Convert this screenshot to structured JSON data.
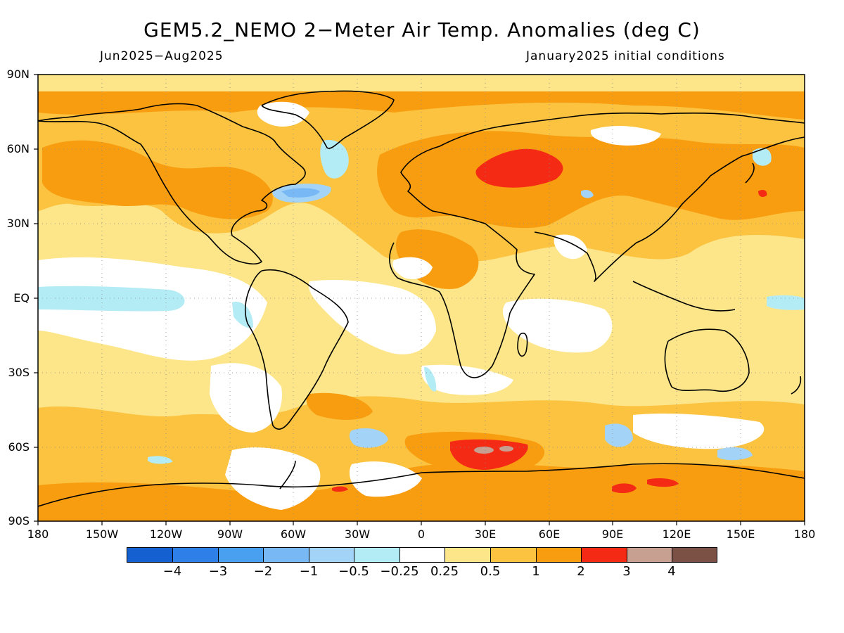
{
  "header": {
    "title": "GEM5.2_NEMO 2−Meter Air Temp. Anomalies (deg C)",
    "period": "Jun2025−Aug2025",
    "init": "January2025 initial conditions"
  },
  "axes": {
    "lat_labels": [
      "90N",
      "60N",
      "30N",
      "EQ",
      "30S",
      "60S",
      "90S"
    ],
    "lon_labels": [
      "180",
      "150W",
      "120W",
      "90W",
      "60W",
      "30W",
      "0",
      "30E",
      "60E",
      "90E",
      "120E",
      "150E",
      "180"
    ],
    "lon_range": [
      -180,
      180
    ],
    "lat_range": [
      -90,
      90
    ],
    "grid": "dotted every 30 degrees"
  },
  "colorbar": {
    "labels": [
      "−4",
      "−3",
      "−2",
      "−1",
      "−0.5",
      "−0.25",
      "0.25",
      "0.5",
      "1",
      "2",
      "3",
      "4"
    ],
    "colors": [
      "#1560d0",
      "#2e7fe8",
      "#4aa0f0",
      "#78b8f5",
      "#a3d3f7",
      "#b4ecf6",
      "#ffffff",
      "#fde68a",
      "#fbc340",
      "#f89c10",
      "#f42a14",
      "#c8a092",
      "#7b5045"
    ]
  },
  "regions": [
    {
      "name": "Eastern Europe / Western Russia",
      "anomaly": "2 to 3"
    },
    {
      "name": "Southern Ocean near 60S 30E",
      "anomaly": "2 to 4"
    },
    {
      "name": "Antarctica interior",
      "anomaly": "1 to 3"
    },
    {
      "name": "Northwest Atlantic off Newfoundland",
      "anomaly": "-1 to -2"
    },
    {
      "name": "Equatorial eastern Pacific",
      "anomaly": "-0.25 to -0.5"
    },
    {
      "name": "Arctic",
      "anomaly": "0.5 to 2"
    },
    {
      "name": "Tropical oceans",
      "anomaly": "-0.25 to 0.25"
    }
  ]
}
